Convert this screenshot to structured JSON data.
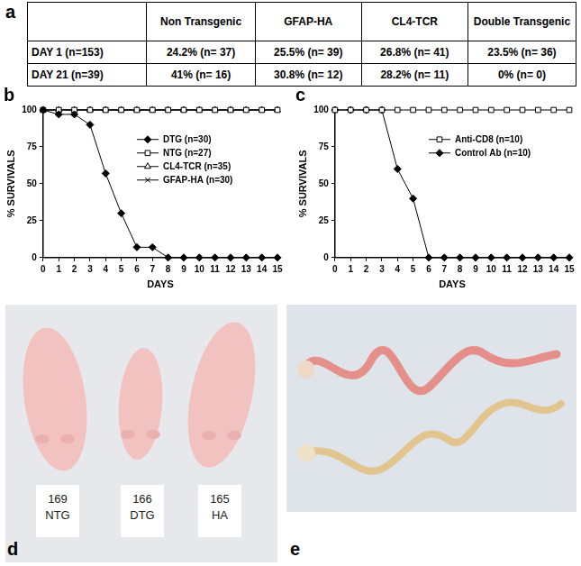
{
  "panel_labels": [
    "a",
    "b",
    "c",
    "d",
    "e"
  ],
  "table": {
    "header": [
      null,
      "Non Transgenic",
      "GFAP-HA",
      "CL4-TCR",
      "Double Transgenic"
    ],
    "rows": [
      [
        "DAY 1 (n=153)",
        "24.2% (n= 37)",
        "25.5% (n= 39)",
        "26.8% (n= 41)",
        "23.5% (n= 36)"
      ],
      [
        "DAY 21 (n=39)",
        "41% (n= 16)",
        "30.8% (n= 12)",
        "28.2% (n= 11)",
        "0% (n= 0)"
      ]
    ]
  },
  "chart_data": [
    {
      "type": "line",
      "xlabel": "DAYS",
      "ylabel": "% SURVIVALS",
      "x": [
        0,
        1,
        2,
        3,
        4,
        5,
        6,
        7,
        8,
        9,
        10,
        11,
        12,
        13,
        14,
        15
      ],
      "xlim": [
        0,
        15
      ],
      "xticks": [
        0,
        1,
        2,
        3,
        4,
        5,
        6,
        7,
        8,
        9,
        10,
        11,
        12,
        13,
        14,
        15
      ],
      "ylim": [
        0,
        100
      ],
      "yticks": [
        0,
        25,
        50,
        75,
        100
      ],
      "grid": false,
      "legend": "right",
      "series": [
        {
          "name": "DTG (n=30)",
          "color": "#000000",
          "marker": "diamond",
          "values": [
            100,
            97,
            97,
            90,
            57,
            30,
            7,
            7,
            0,
            0,
            0,
            0,
            0,
            0,
            0,
            0
          ]
        },
        {
          "name": "NTG (n=27)",
          "color": "#000000",
          "marker": "open_square",
          "values": [
            100,
            100,
            100,
            100,
            100,
            100,
            100,
            100,
            100,
            100,
            100,
            100,
            100,
            100,
            100,
            100
          ]
        },
        {
          "name": "CL4-TCR (n=35)",
          "color": "#000000",
          "marker": "open_triangle",
          "values": [
            100,
            100,
            100,
            100,
            100,
            100,
            100,
            100,
            100,
            100,
            100,
            100,
            100,
            100,
            100,
            100
          ]
        },
        {
          "name": "GFAP-HA (n=30)",
          "color": "#000000",
          "marker": "x",
          "values": [
            100,
            100,
            100,
            100,
            100,
            100,
            100,
            100,
            100,
            100,
            100,
            100,
            100,
            100,
            100,
            100
          ]
        }
      ]
    },
    {
      "type": "line",
      "xlabel": "DAYS",
      "ylabel": "% SURVIVALS",
      "x": [
        0,
        1,
        2,
        3,
        4,
        5,
        6,
        7,
        8,
        9,
        10,
        11,
        12,
        13,
        14,
        15
      ],
      "xlim": [
        0,
        15
      ],
      "xticks": [
        0,
        1,
        2,
        3,
        4,
        5,
        6,
        7,
        8,
        9,
        10,
        11,
        12,
        13,
        14,
        15
      ],
      "ylim": [
        0,
        100
      ],
      "yticks": [
        0,
        25,
        50,
        75,
        100
      ],
      "grid": false,
      "legend": "right",
      "series": [
        {
          "name": "Anti-CD8 (n=10)",
          "color": "#000000",
          "marker": "open_square",
          "values": [
            100,
            100,
            100,
            100,
            100,
            100,
            100,
            100,
            100,
            100,
            100,
            100,
            100,
            100,
            100,
            100
          ]
        },
        {
          "name": "Control Ab (n=10)",
          "color": "#000000",
          "marker": "diamond",
          "values": [
            100,
            100,
            100,
            100,
            60,
            40,
            0,
            0,
            0,
            0,
            0,
            0,
            0,
            0,
            0,
            0
          ]
        }
      ]
    }
  ],
  "photos": {
    "d": {
      "labels": [
        [
          "169",
          "NTG"
        ],
        [
          "166",
          "DTG"
        ],
        [
          "165",
          "HA"
        ]
      ]
    }
  }
}
